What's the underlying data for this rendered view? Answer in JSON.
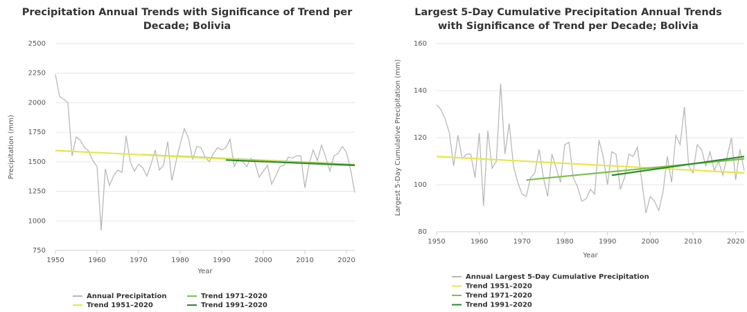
{
  "chart_data": [
    {
      "type": "line",
      "title": "Precipitation Annual Trends with Significance of Trend per Decade; Bolivia",
      "x_label": "Year",
      "y_label": "Precipitation (mm)",
      "xlim": [
        1950,
        2022
      ],
      "xticks": [
        1950,
        1960,
        1970,
        1980,
        1990,
        2000,
        2010,
        2020
      ],
      "ylim": [
        750,
        2500
      ],
      "yticks": [
        750,
        1000,
        1250,
        1500,
        1750,
        2000,
        2250,
        2500
      ],
      "grid": true,
      "series": [
        {
          "name": "Annual Precipitation",
          "color": "#b8b8b8",
          "x": [
            1950,
            1951,
            1952,
            1953,
            1954,
            1955,
            1956,
            1957,
            1958,
            1959,
            1960,
            1961,
            1962,
            1963,
            1964,
            1965,
            1966,
            1967,
            1968,
            1969,
            1970,
            1971,
            1972,
            1973,
            1974,
            1975,
            1976,
            1977,
            1978,
            1979,
            1980,
            1981,
            1982,
            1983,
            1984,
            1985,
            1986,
            1987,
            1988,
            1989,
            1990,
            1991,
            1992,
            1993,
            1994,
            1995,
            1996,
            1997,
            1998,
            1999,
            2000,
            2001,
            2002,
            2003,
            2004,
            2005,
            2006,
            2007,
            2008,
            2009,
            2010,
            2011,
            2012,
            2013,
            2014,
            2015,
            2016,
            2017,
            2018,
            2019,
            2020,
            2021,
            2022
          ],
          "values": [
            2240,
            2050,
            2030,
            2000,
            1550,
            1710,
            1680,
            1620,
            1590,
            1510,
            1460,
            920,
            1440,
            1300,
            1380,
            1430,
            1410,
            1720,
            1500,
            1420,
            1480,
            1450,
            1380,
            1480,
            1600,
            1430,
            1470,
            1670,
            1340,
            1500,
            1650,
            1780,
            1700,
            1520,
            1630,
            1620,
            1540,
            1500,
            1570,
            1620,
            1600,
            1620,
            1690,
            1460,
            1530,
            1500,
            1460,
            1530,
            1490,
            1370,
            1420,
            1470,
            1310,
            1380,
            1460,
            1470,
            1540,
            1530,
            1550,
            1550,
            1280,
            1480,
            1600,
            1510,
            1640,
            1540,
            1420,
            1550,
            1570,
            1630,
            1580,
            1430,
            1240
          ]
        },
        {
          "name": "Trend 1971–2020",
          "color": "#7cc04a",
          "x": [
            1971,
            2022
          ],
          "values": [
            1560,
            1475
          ]
        },
        {
          "name": "Trend 1951–2020",
          "color": "#e6e64a",
          "x": [
            1950,
            2022
          ],
          "values": [
            1595,
            1470
          ]
        },
        {
          "name": "Trend 1991–2020",
          "color": "#2a8a2a",
          "x": [
            1991,
            2022
          ],
          "values": [
            1515,
            1470
          ]
        }
      ]
    },
    {
      "type": "line",
      "title": "Largest 5-Day Cumulative Precipitation Annual Trends with Significance of Trend per Decade; Bolivia",
      "x_label": "Year",
      "y_label": "Largest 5-Day Cumulative Precipitation (mm)",
      "xlim": [
        1950,
        2022
      ],
      "xticks": [
        1950,
        1960,
        1970,
        1980,
        1990,
        2000,
        2010,
        2020
      ],
      "ylim": [
        80,
        160
      ],
      "yticks": [
        80,
        100,
        120,
        140,
        160
      ],
      "grid": true,
      "series": [
        {
          "name": "Annual Largest 5-Day Cumulative Precipitation",
          "color": "#b8b8b8",
          "x": [
            1950,
            1951,
            1952,
            1953,
            1954,
            1955,
            1956,
            1957,
            1958,
            1959,
            1960,
            1961,
            1962,
            1963,
            1964,
            1965,
            1966,
            1967,
            1968,
            1969,
            1970,
            1971,
            1972,
            1973,
            1974,
            1975,
            1976,
            1977,
            1978,
            1979,
            1980,
            1981,
            1982,
            1983,
            1984,
            1985,
            1986,
            1987,
            1988,
            1989,
            1990,
            1991,
            1992,
            1993,
            1994,
            1995,
            1996,
            1997,
            1998,
            1999,
            2000,
            2001,
            2002,
            2003,
            2004,
            2005,
            2006,
            2007,
            2008,
            2009,
            2010,
            2011,
            2012,
            2013,
            2014,
            2015,
            2016,
            2017,
            2018,
            2019,
            2020,
            2021,
            2022
          ],
          "values": [
            134,
            132,
            128,
            122,
            108,
            121,
            111,
            113,
            113,
            103,
            122,
            91,
            123,
            107,
            110,
            143,
            113,
            126,
            108,
            101,
            96,
            95,
            103,
            105,
            115,
            103,
            95,
            113,
            107,
            101,
            117,
            118,
            103,
            99,
            93,
            94,
            98,
            96,
            119,
            112,
            100,
            114,
            113,
            98,
            103,
            113,
            112,
            116,
            102,
            88,
            95,
            93,
            89,
            97,
            112,
            101,
            121,
            117,
            133,
            108,
            105,
            117,
            115,
            108,
            114,
            106,
            110,
            104,
            112,
            120,
            102,
            115,
            106
          ]
        },
        {
          "name": "Trend 1951–2020",
          "color": "#e6e64a",
          "x": [
            1950,
            2022
          ],
          "values": [
            112,
            105
          ]
        },
        {
          "name": "Trend 1971–2020",
          "color": "#7cc04a",
          "x": [
            1971,
            2022
          ],
          "values": [
            102,
            111
          ]
        },
        {
          "name": "Trend 1991–2020",
          "color": "#2a8a2a",
          "x": [
            1991,
            2022
          ],
          "values": [
            104,
            112
          ]
        }
      ]
    }
  ]
}
